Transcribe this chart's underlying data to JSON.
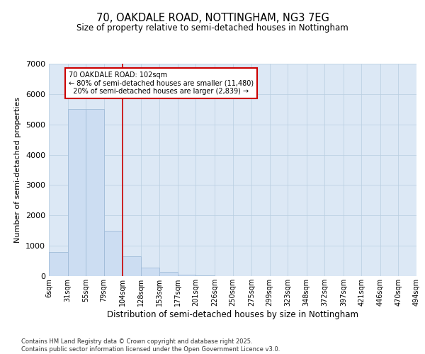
{
  "title1": "70, OAKDALE ROAD, NOTTINGHAM, NG3 7EG",
  "title2": "Size of property relative to semi-detached houses in Nottingham",
  "xlabel": "Distribution of semi-detached houses by size in Nottingham",
  "ylabel": "Number of semi-detached properties",
  "property_label": "70 OAKDALE ROAD: 102sqm",
  "pct_smaller": 80,
  "count_smaller": 11480,
  "pct_larger": 20,
  "count_larger": 2839,
  "red_line_x": 104,
  "bin_edges": [
    6,
    31,
    55,
    79,
    104,
    128,
    153,
    177,
    201,
    226,
    250,
    275,
    299,
    323,
    348,
    372,
    397,
    421,
    446,
    470,
    494
  ],
  "bin_labels": [
    "6sqm",
    "31sqm",
    "55sqm",
    "79sqm",
    "104sqm",
    "128sqm",
    "153sqm",
    "177sqm",
    "201sqm",
    "226sqm",
    "250sqm",
    "275sqm",
    "299sqm",
    "323sqm",
    "348sqm",
    "372sqm",
    "397sqm",
    "421sqm",
    "446sqm",
    "470sqm",
    "494sqm"
  ],
  "counts": [
    800,
    5500,
    5500,
    1500,
    650,
    280,
    130,
    50,
    30,
    10,
    5,
    0,
    0,
    0,
    0,
    0,
    0,
    0,
    0,
    0
  ],
  "bar_color": "#ccddf2",
  "bar_edge_color": "#a0bcd8",
  "red_line_color": "#cc0000",
  "annotation_box_color": "#cc0000",
  "grid_color": "#b8cee0",
  "bg_color": "#dce8f5",
  "footer": "Contains HM Land Registry data © Crown copyright and database right 2025.\nContains public sector information licensed under the Open Government Licence v3.0.",
  "ylim": [
    0,
    7000
  ]
}
